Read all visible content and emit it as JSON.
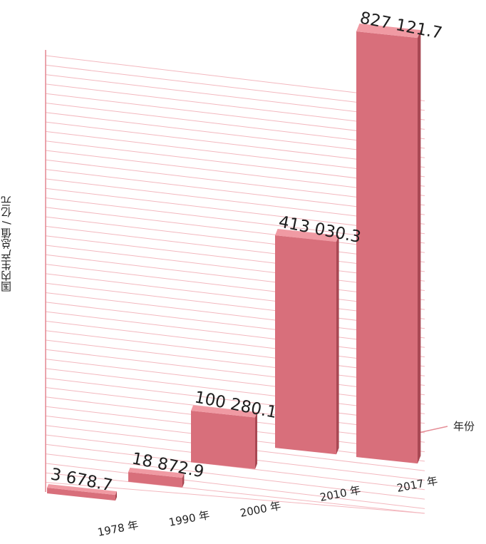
{
  "chart_data": {
    "type": "bar",
    "title": "",
    "ylabel": "国内生产总值 / 亿元",
    "xlabel": "年份",
    "categories": [
      "1978 年",
      "1990 年",
      "2000 年",
      "2010 年",
      "2017 年"
    ],
    "values": [
      3678.7,
      18872.9,
      100280.1,
      413030.3,
      827121.7
    ],
    "value_labels": [
      "3 678.7",
      "18 872.9",
      "100 280.1",
      "413 030.3",
      "827 121.7"
    ],
    "ylim": [
      0,
      900000
    ],
    "grid": true,
    "style": "3d perspective bars",
    "colors": {
      "bar": "#d86f7b",
      "bar_top": "#f09aa3",
      "bar_side": "#a84853",
      "grid": "#f3b7be"
    }
  }
}
